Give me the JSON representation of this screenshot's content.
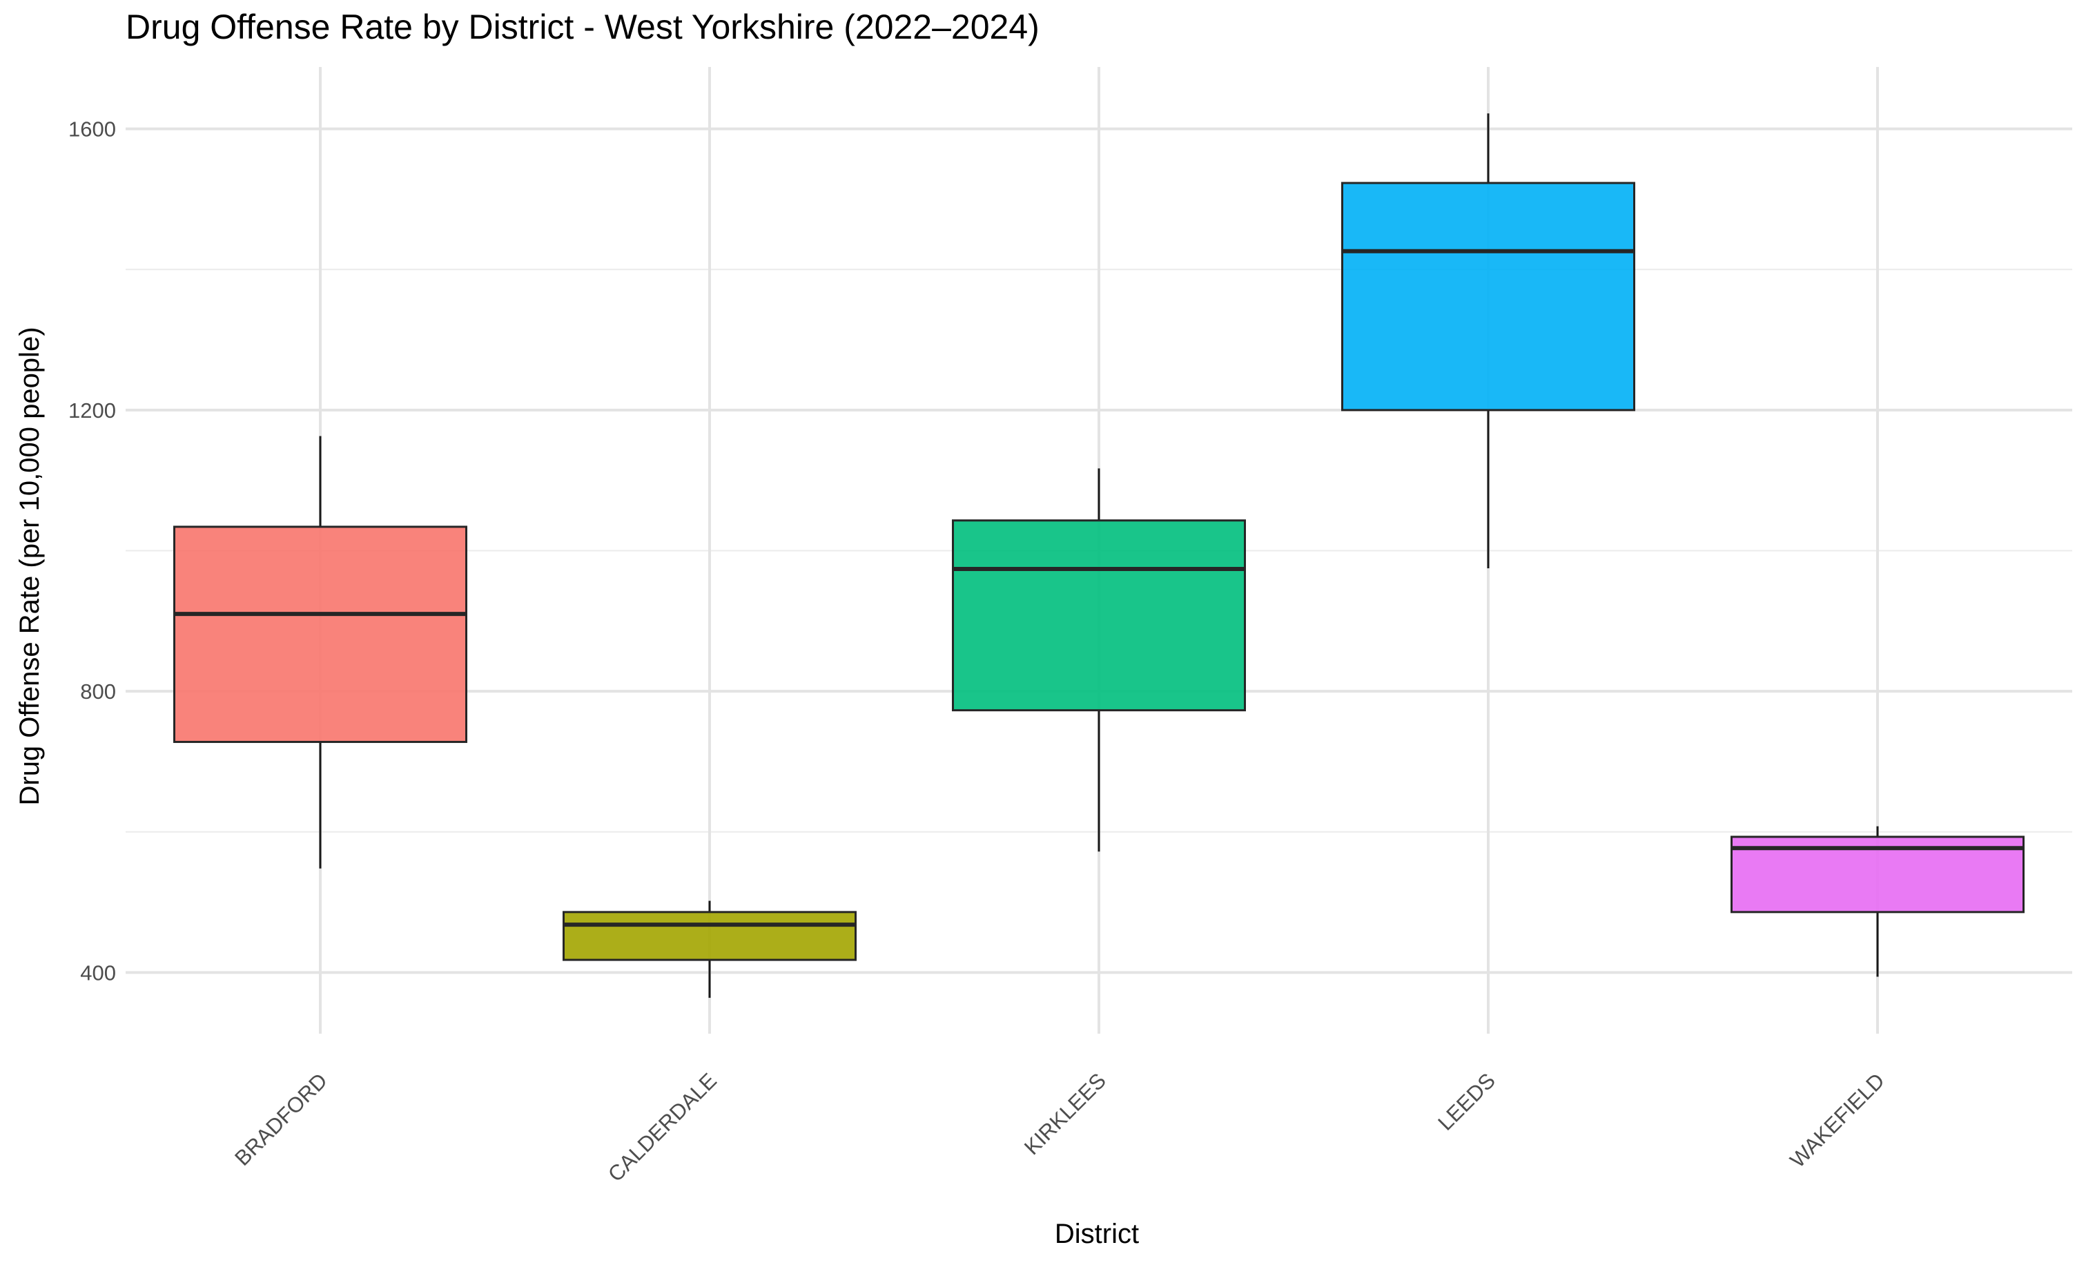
{
  "chart_data": {
    "type": "boxplot",
    "title": "Drug Offense Rate by District - West Yorkshire (2022–2024)",
    "xlabel": "District",
    "ylabel": "Drug Offense Rate (per 10,000 people)",
    "ylim": [
      313,
      1688
    ],
    "y_ticks": [
      400,
      800,
      1200,
      1600
    ],
    "grid": true,
    "legend": "none",
    "categories": [
      "BRADFORD",
      "CALDERDALE",
      "KIRKLEES",
      "LEEDS",
      "WAKEFIELD"
    ],
    "boxes": [
      {
        "category": "BRADFORD",
        "whisker_low": 548,
        "q1": 728,
        "median": 910,
        "q3": 1034,
        "whisker_high": 1163,
        "color": "#F8766D"
      },
      {
        "category": "CALDERDALE",
        "whisker_low": 364,
        "q1": 418,
        "median": 468,
        "q3": 486,
        "whisker_high": 502,
        "color": "#A3A500"
      },
      {
        "category": "KIRKLEES",
        "whisker_low": 572,
        "q1": 773,
        "median": 974,
        "q3": 1043,
        "whisker_high": 1117,
        "color": "#00BF7D"
      },
      {
        "category": "LEEDS",
        "whisker_low": 975,
        "q1": 1200,
        "median": 1426,
        "q3": 1523,
        "whisker_high": 1622,
        "color": "#00B0F6"
      },
      {
        "category": "WAKEFIELD",
        "whisker_low": 394,
        "q1": 486,
        "median": 577,
        "q3": 593,
        "whisker_high": 608,
        "color": "#E76BF3"
      }
    ]
  }
}
